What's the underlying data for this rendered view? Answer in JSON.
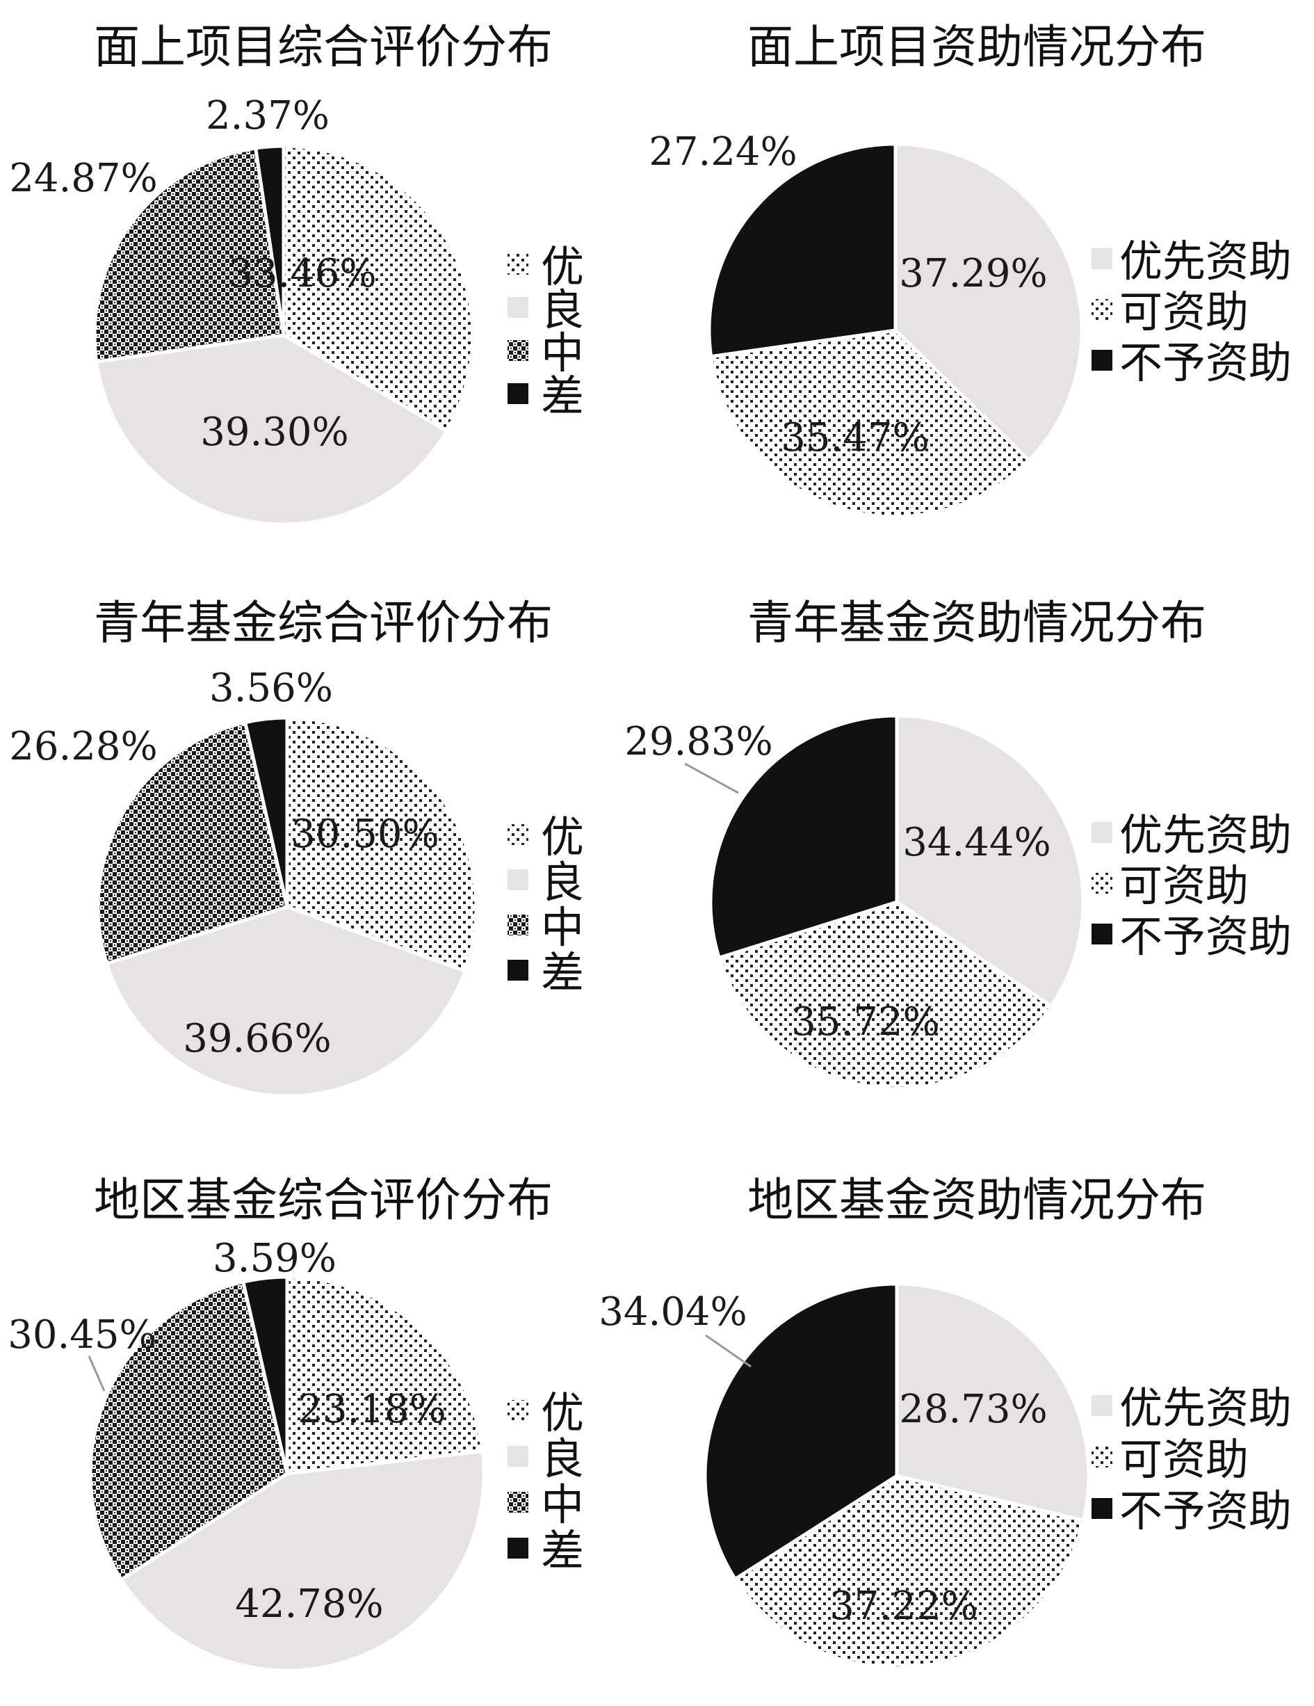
{
  "chart_data": [
    {
      "type": "pie",
      "title": "面上项目综合评价分布",
      "categories": [
        "优",
        "良",
        "中",
        "差"
      ],
      "values": [
        33.46,
        39.3,
        24.87,
        2.37
      ],
      "labels": [
        "33.46%",
        "39.30%",
        "24.87%",
        "2.37%"
      ],
      "legend": "right"
    },
    {
      "type": "pie",
      "title": "面上项目资助情况分布",
      "categories": [
        "优先资助",
        "可资助",
        "不予资助"
      ],
      "values": [
        37.29,
        35.47,
        27.24
      ],
      "labels": [
        "37.29%",
        "35.47%",
        "27.24%"
      ],
      "legend": "right"
    },
    {
      "type": "pie",
      "title": "青年基金综合评价分布",
      "categories": [
        "优",
        "良",
        "中",
        "差"
      ],
      "values": [
        30.5,
        39.66,
        26.28,
        3.56
      ],
      "labels": [
        "30.50%",
        "39.66%",
        "26.28%",
        "3.56%"
      ],
      "legend": "right"
    },
    {
      "type": "pie",
      "title": "青年基金资助情况分布",
      "categories": [
        "优先资助",
        "可资助",
        "不予资助"
      ],
      "values": [
        34.44,
        35.72,
        29.83
      ],
      "labels": [
        "34.44%",
        "35.72%",
        "29.83%"
      ],
      "legend": "right"
    },
    {
      "type": "pie",
      "title": "地区基金综合评价分布",
      "categories": [
        "优",
        "良",
        "中",
        "差"
      ],
      "values": [
        23.18,
        42.78,
        30.45,
        3.59
      ],
      "labels": [
        "23.18%",
        "42.78%",
        "30.45%",
        "3.59%"
      ],
      "legend": "right"
    },
    {
      "type": "pie",
      "title": "地区基金资助情况分布",
      "categories": [
        "优先资助",
        "可资助",
        "不予资助"
      ],
      "values": [
        28.73,
        37.22,
        34.04
      ],
      "labels": [
        "28.73%",
        "37.22%",
        "34.04%"
      ],
      "legend": "right"
    }
  ]
}
